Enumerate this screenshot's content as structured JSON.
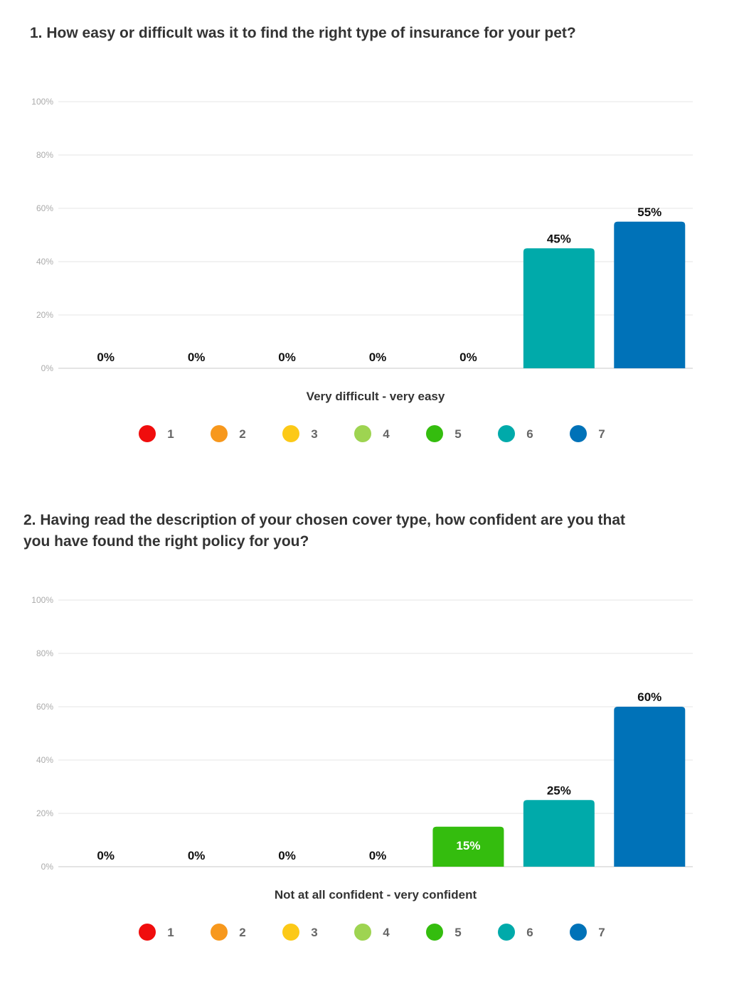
{
  "chart_data": [
    {
      "type": "bar",
      "title": "1. How easy or difficult was it to find the right type of insurance for your pet?",
      "xlabel": "Very difficult - very easy",
      "ylabel": "",
      "ylim": [
        0,
        100
      ],
      "yticks": [
        "0%",
        "20%",
        "40%",
        "60%",
        "80%",
        "100%"
      ],
      "categories": [
        "1",
        "2",
        "3",
        "4",
        "5",
        "6",
        "7"
      ],
      "values": [
        0,
        0,
        0,
        0,
        0,
        45,
        55
      ],
      "labels": [
        "0%",
        "0%",
        "0%",
        "0%",
        "0%",
        "45%",
        "55%"
      ],
      "colors": [
        "#f00d0d",
        "#f7981d",
        "#fcc917",
        "#9ed451",
        "#34bd0e",
        "#00aaaa",
        "#0072b8"
      ],
      "legend": [
        "1",
        "2",
        "3",
        "4",
        "5",
        "6",
        "7"
      ],
      "legend_position": "bottom",
      "grid": true
    },
    {
      "type": "bar",
      "title": "2. Having read the description of your chosen cover type, how confident are you that you have found the right policy for you?",
      "xlabel": "Not at all confident - very confident",
      "ylabel": "",
      "ylim": [
        0,
        100
      ],
      "yticks": [
        "0%",
        "20%",
        "40%",
        "60%",
        "80%",
        "100%"
      ],
      "categories": [
        "1",
        "2",
        "3",
        "4",
        "5",
        "6",
        "7"
      ],
      "values": [
        0,
        0,
        0,
        0,
        15,
        25,
        60
      ],
      "labels": [
        "0%",
        "0%",
        "0%",
        "0%",
        "15%",
        "25%",
        "60%"
      ],
      "colors": [
        "#f00d0d",
        "#f7981d",
        "#fcc917",
        "#9ed451",
        "#34bd0e",
        "#00aaaa",
        "#0072b8"
      ],
      "legend": [
        "1",
        "2",
        "3",
        "4",
        "5",
        "6",
        "7"
      ],
      "legend_position": "bottom",
      "grid": true
    }
  ]
}
